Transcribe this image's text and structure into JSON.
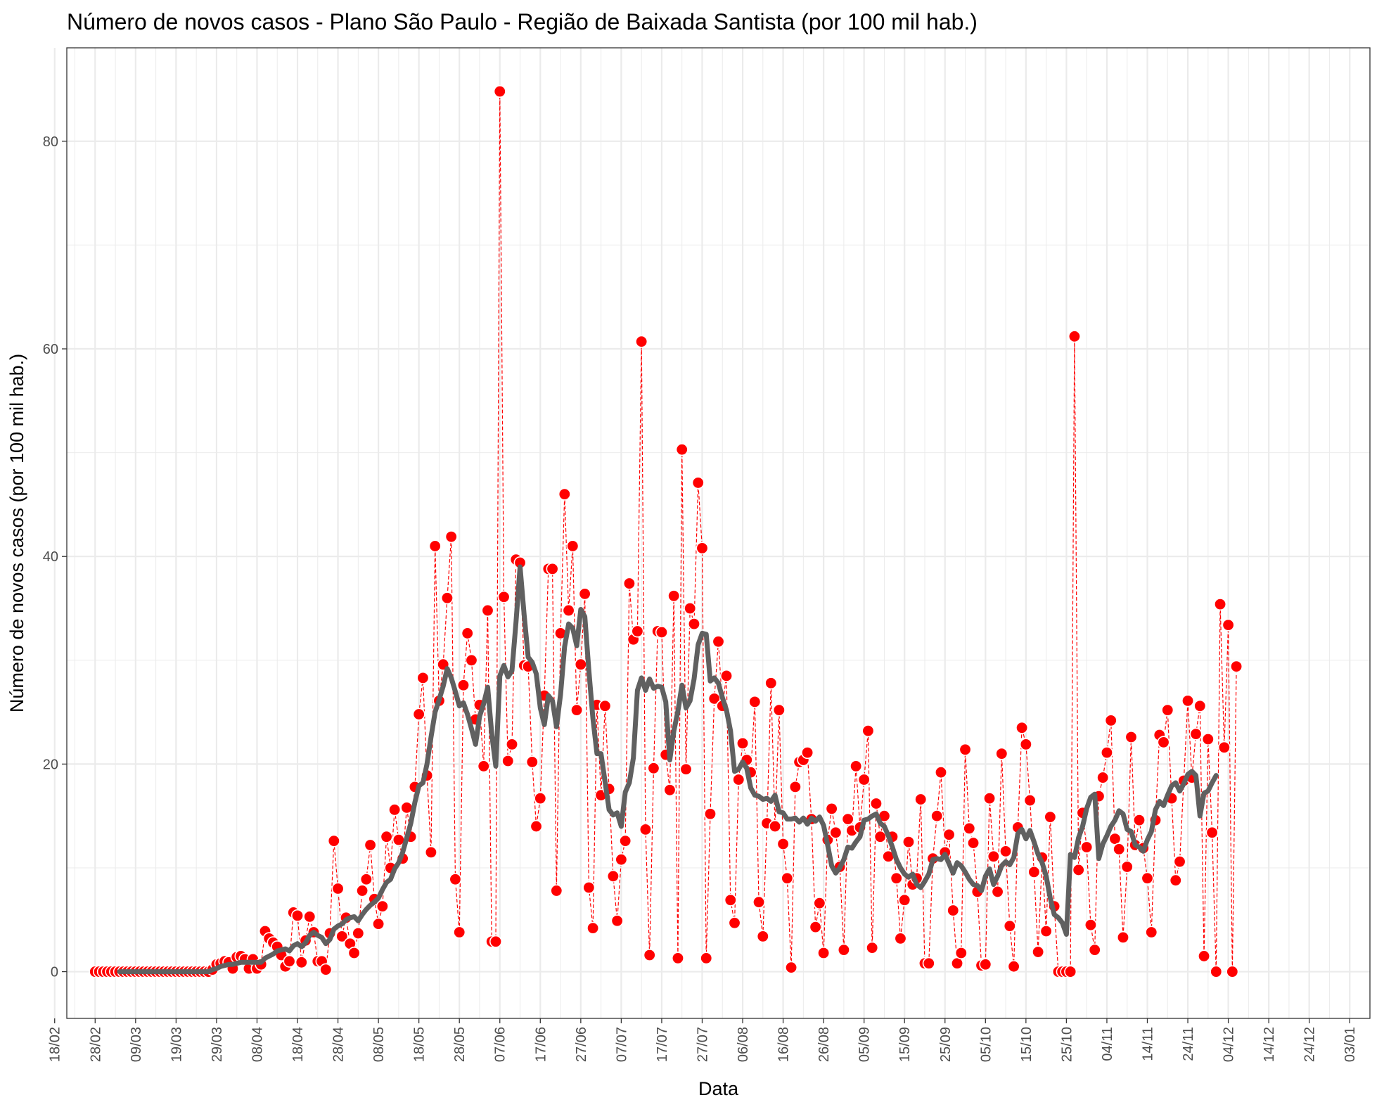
{
  "chart_data": {
    "type": "line",
    "title": "Número de novos casos - Plano São Paulo - Região de Baixada Santista (por 100 mil hab.)",
    "xlabel": "Data",
    "ylabel": "Número de novos casos (por 100 mil hab.)",
    "x_ticks": [
      "18/02",
      "28/02",
      "09/03",
      "19/03",
      "29/03",
      "08/04",
      "18/04",
      "28/04",
      "08/05",
      "18/05",
      "28/05",
      "07/06",
      "17/06",
      "27/06",
      "07/07",
      "17/07",
      "27/07",
      "06/08",
      "16/08",
      "26/08",
      "05/09",
      "15/09",
      "25/09",
      "05/10",
      "15/10",
      "25/10",
      "04/11",
      "14/11",
      "24/11",
      "04/12",
      "14/12",
      "24/12",
      "03/01"
    ],
    "y_ticks": [
      0,
      20,
      40,
      60,
      80
    ],
    "xlim_days": [
      -7,
      315
    ],
    "ylim": [
      -4.5,
      89
    ],
    "grid": true,
    "colors": {
      "points": "#ff0000",
      "dashed_line": "#ff0000",
      "moving_average": "#606060",
      "grid": "#ebebeb",
      "border": "#333333"
    },
    "series": [
      {
        "role": "daily",
        "values": [
          0,
          0,
          0,
          0,
          0,
          0,
          0,
          0,
          0,
          0,
          0,
          0,
          0,
          0,
          0,
          0,
          0,
          0,
          0,
          0,
          0,
          0,
          0,
          0,
          0,
          0,
          0,
          0,
          0,
          0.2,
          0.7,
          0.8,
          1.0,
          0.9,
          0.3,
          1.4,
          1.5,
          1.2,
          0.3,
          1.2,
          0.3,
          0.7,
          3.9,
          3.2,
          2.8,
          2.4,
          1.6,
          0.5,
          1.0,
          5.7,
          5.4,
          0.9,
          3.0,
          5.3,
          3.8,
          1.0,
          1.0,
          0.2,
          3.7,
          12.6,
          8.0,
          3.4,
          5.2,
          2.7,
          1.8,
          3.7,
          7.8,
          8.9,
          12.2,
          7.0,
          4.6,
          6.3,
          13.0,
          10.0,
          15.6,
          12.7,
          10.9,
          15.8,
          13.0,
          17.8,
          24.8,
          28.3,
          18.9,
          11.5,
          41.0,
          26.1,
          29.6,
          36.0,
          41.9,
          8.9,
          3.8,
          27.6,
          32.6,
          30.0,
          24.3,
          25.7,
          19.8,
          34.8,
          2.9,
          2.9,
          84.8,
          36.1,
          20.3,
          21.9,
          39.7,
          39.4,
          29.5,
          29.4,
          20.2,
          14.0,
          16.7,
          26.6,
          38.8,
          38.8,
          7.8,
          32.6,
          46.0,
          34.8,
          41.0,
          25.2,
          29.6,
          36.4,
          8.1,
          4.2,
          25.7,
          17.0,
          25.6,
          17.6,
          9.2,
          4.9,
          10.8,
          12.6,
          37.4,
          32.0,
          32.8,
          60.7,
          13.7,
          1.6,
          19.6,
          32.8,
          32.7,
          20.9,
          17.5,
          36.2,
          1.3,
          50.3,
          19.5,
          35.0,
          33.5,
          47.1,
          40.8,
          1.3,
          15.2,
          26.3,
          31.8,
          25.6,
          28.5,
          6.9,
          4.7,
          18.5,
          22.0,
          20.4,
          19.2,
          26.0,
          6.7,
          3.4,
          14.3,
          27.8,
          14.0,
          25.2,
          12.3,
          9.0,
          0.4,
          17.8,
          20.2,
          20.4,
          21.1,
          14.7,
          4.3,
          6.6,
          1.8,
          12.7,
          15.7,
          13.4,
          10.1,
          2.1,
          14.7,
          13.6,
          19.8,
          13.9,
          18.5,
          23.2,
          2.3,
          16.2,
          13.0,
          15.0,
          11.1,
          13.0,
          9.0,
          3.2,
          6.9,
          12.5,
          8.4,
          9.0,
          16.6,
          0.8,
          0.8,
          10.9,
          15.0,
          19.2,
          11.5,
          13.2,
          5.9,
          0.8,
          1.8,
          21.4,
          13.8,
          12.4,
          7.7,
          0.6,
          0.7,
          16.7,
          11.1,
          7.7,
          21.0,
          11.6,
          4.4,
          0.5,
          13.9,
          23.5,
          21.9,
          16.5,
          9.6,
          1.9,
          11.0,
          3.9,
          14.9,
          6.3,
          0,
          0,
          0,
          0,
          61.2,
          9.8,
          15.3,
          12.0,
          4.5,
          2.1,
          16.9,
          18.7,
          21.1,
          24.2,
          12.8,
          11.8,
          3.3,
          10.1,
          22.6,
          12.2,
          14.6,
          11.9,
          9.0,
          3.8,
          14.6,
          22.8,
          22.1,
          25.2,
          16.7,
          8.8,
          10.6,
          18.4,
          26.1,
          18.7,
          22.9,
          25.6,
          1.5,
          22.4,
          13.4,
          0,
          35.4,
          21.6,
          33.4,
          0,
          29.4
        ]
      },
      {
        "role": "moving-average",
        "values": [
          null,
          null,
          null,
          null,
          null,
          null,
          0,
          0,
          0,
          0,
          0,
          0,
          0,
          0,
          0,
          0,
          0,
          0,
          0,
          0,
          0,
          0,
          0,
          0,
          0,
          0,
          0,
          0,
          0,
          0.2,
          0.3,
          0.5,
          0.6,
          0.7,
          0.7,
          0.8,
          0.9,
          0.9,
          0.9,
          0.9,
          0.9,
          0.9,
          1.3,
          1.5,
          1.7,
          2.0,
          2.1,
          2.2,
          2.0,
          2.5,
          2.7,
          2.4,
          2.8,
          3.5,
          3.8,
          3.5,
          3.3,
          2.7,
          3.1,
          4.1,
          4.4,
          4.6,
          5.0,
          5.2,
          5.3,
          4.9,
          5.5,
          6.0,
          6.4,
          6.7,
          7.1,
          7.9,
          8.6,
          8.9,
          9.9,
          10.5,
          11.5,
          12.9,
          14.3,
          16.3,
          17.9,
          18.2,
          20.0,
          22.6,
          25.0,
          26.2,
          27.5,
          29.2,
          28.3,
          27.0,
          25.6,
          25.9,
          24.8,
          23.4,
          21.9,
          24.6,
          25.8,
          27.4,
          22.9,
          19.8,
          28.5,
          29.5,
          28.4,
          29.0,
          33.7,
          39.0,
          34.4,
          30.3,
          29.8,
          28.7,
          25.4,
          23.8,
          26.6,
          26.1,
          23.6,
          26.7,
          31.3,
          33.5,
          33.1,
          31.4,
          34.9,
          34.2,
          29.0,
          24.4,
          21.0,
          21.0,
          18.3,
          15.6,
          15.1,
          15.3,
          14.0,
          17.3,
          18.2,
          20.6,
          27.1,
          28.3,
          27.1,
          28.2,
          27.3,
          27.5,
          27.4,
          26.0,
          20.4,
          23.2,
          25.1,
          27.6,
          25.4,
          26.1,
          28.2,
          31.5,
          32.6,
          32.5,
          28.0,
          28.3,
          27.8,
          26.4,
          25.2,
          23.2,
          19.3,
          19.5,
          20.2,
          19.6,
          17.7,
          17.0,
          16.9,
          16.6,
          16.7,
          16.4,
          17.0,
          15.4,
          15.3,
          14.7,
          14.7,
          14.8,
          14.4,
          14.8,
          14.2,
          14.8,
          14.5,
          14.9,
          14.1,
          12.2,
          10.2,
          9.5,
          10.0,
          10.8,
          12.0,
          11.9,
          12.5,
          13.0,
          14.6,
          14.7,
          15.0,
          15.2,
          14.3,
          14.0,
          13.1,
          12.0,
          10.8,
          10.0,
          9.4,
          9.1,
          9.4,
          8.4,
          8.1,
          8.7,
          9.4,
          10.8,
          10.9,
          10.8,
          11.3,
          10.4,
          9.5,
          10.5,
          10.2,
          9.6,
          8.9,
          8.4,
          8.3,
          7.8,
          9.2,
          9.9,
          8.4,
          9.2,
          10.2,
          10.6,
          10.3,
          11.0,
          13.3,
          13.7,
          12.8,
          13.6,
          12.5,
          11.3,
          10.5,
          9.2,
          7.1,
          5.5,
          5.2,
          4.7,
          3.6,
          11.3,
          11.0,
          12.9,
          14.0,
          15.7,
          16.8,
          17.1,
          10.9,
          12.3,
          13.1,
          14.0,
          14.6,
          15.5,
          15.2,
          13.7,
          13.5,
          12.2,
          12.0,
          11.6,
          12.7,
          13.5,
          15.6,
          16.4,
          16.0,
          17.0,
          17.9,
          18.2,
          17.4,
          18.1,
          19.0,
          19.3,
          18.9,
          15.0,
          17.2,
          17.4,
          18.2,
          18.9
        ]
      }
    ]
  }
}
